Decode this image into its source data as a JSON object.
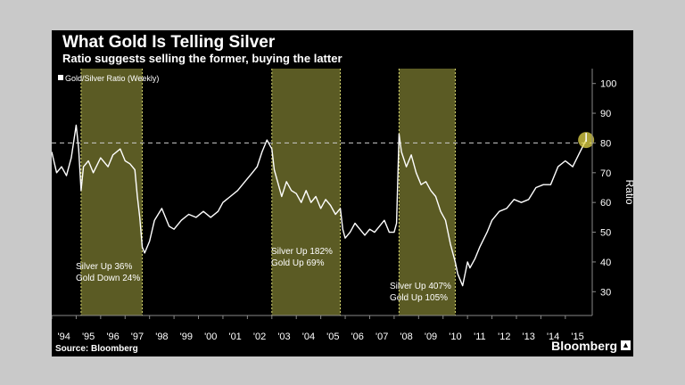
{
  "header": {
    "title": "What Gold Is Telling Silver",
    "subtitle": "Ratio suggests selling the former, buying the latter"
  },
  "footer": {
    "source": "Source: Bloomberg",
    "brand": "Bloomberg"
  },
  "colors": {
    "background": "#000000",
    "line": "#ffffff",
    "highlight": "#6b6b2a",
    "marker": "#e6d84a"
  },
  "chart_data": {
    "type": "line",
    "title": "What Gold Is Telling Silver",
    "legend": "Gold/Silver Ratio (Weekly)",
    "legend_position": "top-left",
    "xlabel": "",
    "ylabel": "Ratio",
    "xlim": [
      1994.0,
      2016.1
    ],
    "ylim": [
      22,
      105
    ],
    "yticks": [
      30,
      40,
      50,
      60,
      70,
      80,
      90,
      100
    ],
    "xtick_labels": [
      "'94",
      "'95",
      "'96",
      "'97",
      "'98",
      "'99",
      "'00",
      "'01",
      "'02",
      "'03",
      "'04",
      "'05",
      "'06",
      "'07",
      "'08",
      "'09",
      "'10",
      "'11",
      "'12",
      "'13",
      "'14",
      "'15"
    ],
    "reference_line": 80,
    "current_marker": {
      "x": 2015.85,
      "y": 81
    },
    "shaded_periods": [
      {
        "start": 1995.2,
        "end": 1997.7,
        "label_lines": [
          "Silver Up 36%",
          "Gold Down 24%"
        ]
      },
      {
        "start": 2003.0,
        "end": 2005.8,
        "label_lines": [
          "Silver Up 182%",
          "Gold Up 69%"
        ]
      },
      {
        "start": 2008.2,
        "end": 2010.5,
        "label_lines": [
          "Silver Up 407%",
          "Gold Up 105%"
        ]
      }
    ],
    "series": [
      {
        "name": "Gold/Silver Ratio (Weekly)",
        "x": [
          1994.0,
          1994.2,
          1994.4,
          1994.6,
          1994.8,
          1995.0,
          1995.1,
          1995.2,
          1995.3,
          1995.5,
          1995.7,
          1996.0,
          1996.3,
          1996.5,
          1996.8,
          1997.0,
          1997.2,
          1997.4,
          1997.5,
          1997.6,
          1997.7,
          1997.8,
          1998.0,
          1998.2,
          1998.5,
          1998.8,
          1999.0,
          1999.3,
          1999.6,
          1999.9,
          2000.2,
          2000.5,
          2000.8,
          2001.0,
          2001.3,
          2001.6,
          2001.9,
          2002.2,
          2002.4,
          2002.6,
          2002.8,
          2003.0,
          2003.1,
          2003.2,
          2003.4,
          2003.6,
          2003.8,
          2004.0,
          2004.2,
          2004.4,
          2004.6,
          2004.8,
          2005.0,
          2005.2,
          2005.4,
          2005.6,
          2005.8,
          2005.9,
          2006.0,
          2006.2,
          2006.4,
          2006.6,
          2006.8,
          2007.0,
          2007.2,
          2007.4,
          2007.6,
          2007.8,
          2008.0,
          2008.1,
          2008.2,
          2008.3,
          2008.5,
          2008.7,
          2008.9,
          2009.1,
          2009.3,
          2009.5,
          2009.7,
          2009.9,
          2010.1,
          2010.3,
          2010.5,
          2010.6,
          2010.8,
          2011.0,
          2011.1,
          2011.3,
          2011.5,
          2011.8,
          2012.0,
          2012.3,
          2012.6,
          2012.9,
          2013.2,
          2013.5,
          2013.8,
          2014.1,
          2014.4,
          2014.7,
          2015.0,
          2015.3,
          2015.6,
          2015.85
        ],
        "values": [
          77,
          70,
          72,
          69,
          75,
          86,
          78,
          64,
          72,
          74,
          70,
          75,
          72,
          76,
          78,
          74,
          73,
          71,
          62,
          55,
          45,
          43,
          47,
          54,
          58,
          52,
          51,
          54,
          56,
          55,
          57,
          55,
          57,
          60,
          62,
          64,
          67,
          70,
          72,
          77,
          81,
          78,
          71,
          68,
          62,
          67,
          64,
          63,
          60,
          64,
          60,
          62,
          58,
          61,
          59,
          56,
          58,
          51,
          48,
          50,
          53,
          51,
          49,
          51,
          50,
          52,
          54,
          50,
          50,
          53,
          83,
          77,
          72,
          76,
          70,
          66,
          67,
          64,
          62,
          57,
          54,
          46,
          40,
          36,
          32,
          40,
          38,
          41,
          45,
          50,
          54,
          57,
          58,
          61,
          60,
          61,
          65,
          66,
          66,
          72,
          74,
          72,
          77,
          81
        ]
      }
    ]
  }
}
